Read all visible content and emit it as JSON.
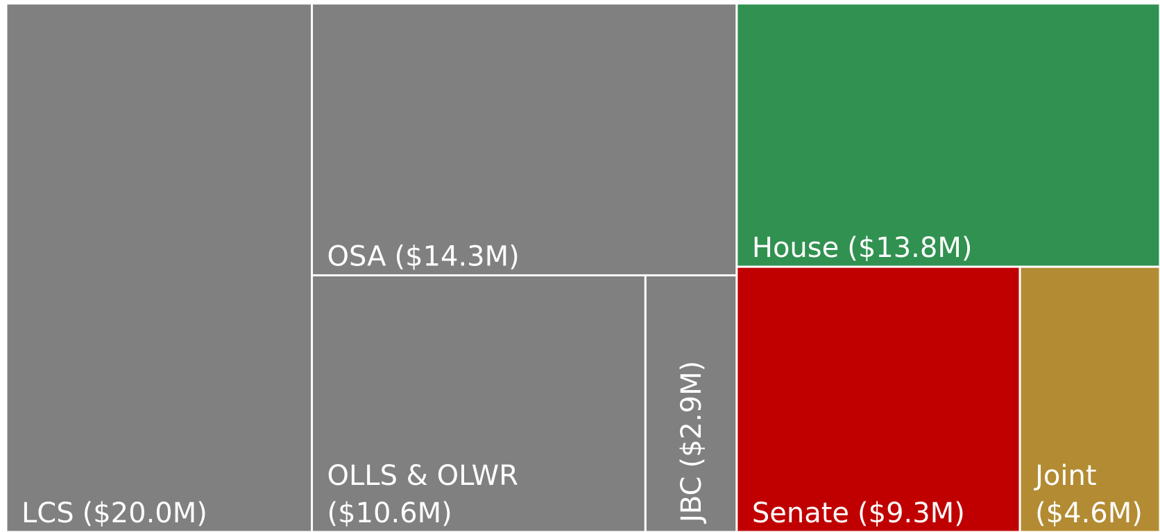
{
  "chart_data": {
    "type": "treemap",
    "categories": [
      "LCS",
      "OSA",
      "OLLS & OLWR",
      "JBC",
      "House",
      "Senate",
      "Joint"
    ],
    "values": [
      20.0,
      14.3,
      10.6,
      2.9,
      13.8,
      9.3,
      4.6
    ],
    "value_labels": [
      "($20.0M)",
      "($14.3M)",
      "($10.6M)",
      "($2.9M)",
      "($13.8M)",
      "($9.3M)",
      "($4.6M)"
    ],
    "colors": [
      "#808080",
      "#808080",
      "#808080",
      "#808080",
      "#319150",
      "#c00000",
      "#b38b33"
    ]
  }
}
